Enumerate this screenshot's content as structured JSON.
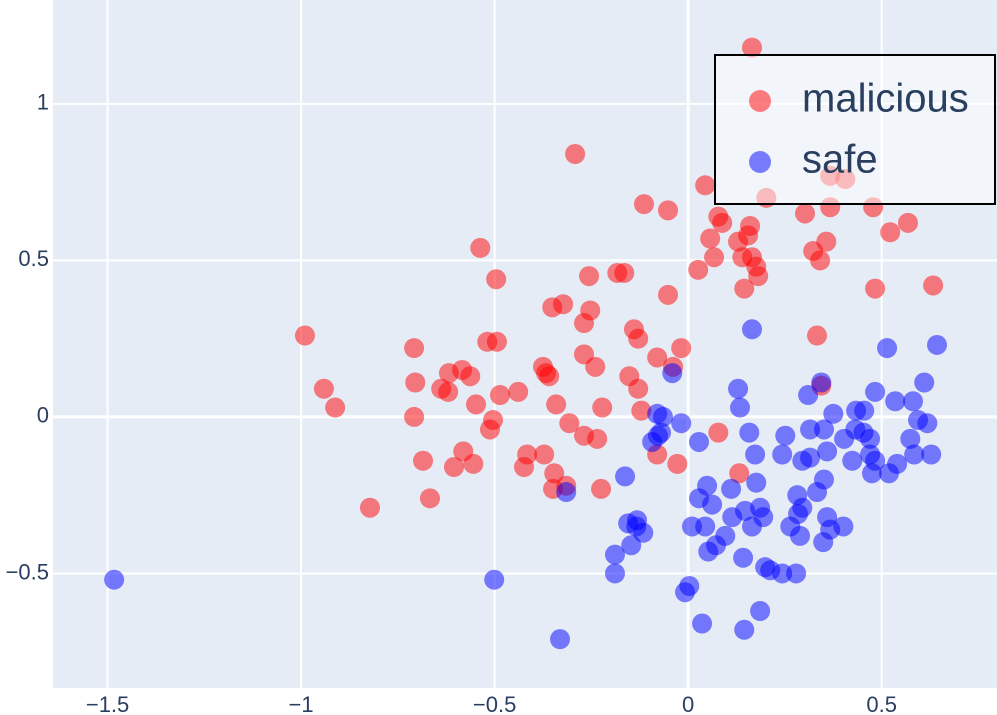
{
  "chart_data": {
    "type": "scatter",
    "xlim": [
      -1.641,
      0.798
    ],
    "ylim": [
      -0.866,
      1.332
    ],
    "xticks": [
      {
        "value": -1.5,
        "label": "−1.5"
      },
      {
        "value": -1,
        "label": "−1"
      },
      {
        "value": -0.5,
        "label": "−0.5"
      },
      0,
      0.5
    ],
    "yticks": [
      {
        "value": -0.5,
        "label": "−0.5"
      },
      0,
      0.5,
      1
    ],
    "grid": true,
    "legend": "upper right",
    "opacity": 0.5,
    "series": [
      {
        "name": "malicious",
        "color": "#ff0000",
        "x": [
          0.165,
          -0.292,
          0.044,
          0.202,
          0.367,
          0.406,
          -0.114,
          -0.052,
          0.078,
          0.088,
          0.16,
          0.302,
          0.367,
          0.478,
          0.568,
          0.522,
          0.155,
          0.057,
          0.129,
          0.357,
          -0.537,
          0.067,
          0.14,
          0.165,
          0.323,
          0.341,
          0.026,
          0.176,
          0.181,
          -0.496,
          -0.256,
          -0.183,
          -0.165,
          0.483,
          0.633,
          0.145,
          -0.052,
          -0.323,
          -0.351,
          -0.253,
          -0.269,
          -0.14,
          -0.129,
          0.333,
          -0.99,
          -0.519,
          -0.494,
          -0.708,
          -0.018,
          -0.269,
          -0.08,
          -0.039,
          -0.24,
          -0.375,
          -0.367,
          -0.359,
          -0.618,
          -0.584,
          -0.563,
          -0.152,
          -0.705,
          0.344,
          -0.941,
          -0.129,
          -0.439,
          -0.486,
          -0.638,
          -0.62,
          -0.341,
          -0.912,
          -0.548,
          -0.222,
          -0.121,
          -0.708,
          -0.504,
          -0.307,
          -0.512,
          0.078,
          -0.269,
          -0.235,
          -0.416,
          -0.372,
          -0.08,
          -0.581,
          -0.685,
          -0.605,
          -0.555,
          -0.028,
          -0.424,
          -0.346,
          0.132,
          -0.315,
          -0.349,
          -0.225,
          -0.667,
          -0.822
        ],
        "values": [
          1.18,
          0.84,
          0.74,
          0.7,
          0.77,
          0.76,
          0.68,
          0.66,
          0.64,
          0.62,
          0.61,
          0.65,
          0.67,
          0.67,
          0.62,
          0.59,
          0.58,
          0.57,
          0.56,
          0.56,
          0.54,
          0.51,
          0.51,
          0.51,
          0.53,
          0.5,
          0.47,
          0.48,
          0.45,
          0.44,
          0.45,
          0.46,
          0.46,
          0.41,
          0.42,
          0.41,
          0.39,
          0.36,
          0.35,
          0.34,
          0.3,
          0.28,
          0.25,
          0.26,
          0.26,
          0.24,
          0.24,
          0.22,
          0.22,
          0.2,
          0.19,
          0.16,
          0.16,
          0.16,
          0.14,
          0.13,
          0.14,
          0.15,
          0.13,
          0.13,
          0.11,
          0.1,
          0.09,
          0.09,
          0.08,
          0.07,
          0.09,
          0.08,
          0.04,
          0.03,
          0.04,
          0.03,
          0.02,
          0.0,
          -0.01,
          -0.02,
          -0.04,
          -0.05,
          -0.06,
          -0.07,
          -0.12,
          -0.12,
          -0.12,
          -0.11,
          -0.14,
          -0.16,
          -0.15,
          -0.15,
          -0.16,
          -0.18,
          -0.18,
          -0.22,
          -0.23,
          -0.23,
          -0.26,
          -0.29
        ]
      },
      {
        "name": "safe",
        "color": "#0000ff",
        "x": [
          0.165,
          0.514,
          0.643,
          -0.041,
          0.129,
          0.344,
          0.483,
          0.61,
          0.31,
          0.535,
          0.581,
          0.134,
          0.375,
          0.434,
          0.455,
          0.594,
          0.618,
          -0.08,
          -0.065,
          -0.018,
          0.315,
          0.351,
          0.432,
          0.453,
          -0.07,
          -0.078,
          0.158,
          0.251,
          0.403,
          0.47,
          0.574,
          -0.093,
          0.028,
          0.359,
          0.243,
          0.173,
          0.47,
          0.584,
          0.628,
          0.424,
          0.483,
          0.295,
          0.54,
          0.315,
          0.519,
          0.475,
          -0.163,
          0.351,
          0.176,
          0.049,
          0.111,
          0.333,
          0.282,
          0.028,
          -0.315,
          0.062,
          0.186,
          0.295,
          0.147,
          0.284,
          0.114,
          0.359,
          0.194,
          -0.155,
          -0.132,
          -0.134,
          0.01,
          0.044,
          0.264,
          0.401,
          0.165,
          -0.116,
          0.367,
          0.289,
          0.096,
          0.349,
          0.072,
          -0.147,
          0.052,
          0.142,
          -0.189,
          0.199,
          0.212,
          0.243,
          0.279,
          -0.189,
          -1.483,
          -0.501,
          0.003,
          -0.008,
          0.186,
          0.036,
          0.145,
          -0.331
        ],
        "values": [
          0.28,
          0.22,
          0.23,
          0.14,
          0.09,
          0.11,
          0.08,
          0.11,
          0.07,
          0.05,
          0.05,
          0.03,
          0.01,
          0.02,
          0.02,
          -0.01,
          -0.02,
          0.01,
          0.0,
          -0.02,
          -0.04,
          -0.04,
          -0.04,
          -0.05,
          -0.05,
          -0.06,
          -0.05,
          -0.06,
          -0.07,
          -0.07,
          -0.07,
          -0.08,
          -0.08,
          -0.11,
          -0.12,
          -0.12,
          -0.12,
          -0.12,
          -0.12,
          -0.14,
          -0.14,
          -0.14,
          -0.15,
          -0.13,
          -0.18,
          -0.18,
          -0.19,
          -0.2,
          -0.21,
          -0.22,
          -0.23,
          -0.24,
          -0.25,
          -0.26,
          -0.24,
          -0.28,
          -0.29,
          -0.29,
          -0.3,
          -0.31,
          -0.32,
          -0.32,
          -0.32,
          -0.34,
          -0.33,
          -0.35,
          -0.35,
          -0.35,
          -0.35,
          -0.35,
          -0.35,
          -0.37,
          -0.36,
          -0.38,
          -0.38,
          -0.4,
          -0.41,
          -0.41,
          -0.43,
          -0.45,
          -0.44,
          -0.48,
          -0.49,
          -0.5,
          -0.5,
          -0.5,
          -0.52,
          -0.52,
          -0.54,
          -0.56,
          -0.62,
          -0.66,
          -0.68,
          -0.71
        ]
      }
    ]
  }
}
